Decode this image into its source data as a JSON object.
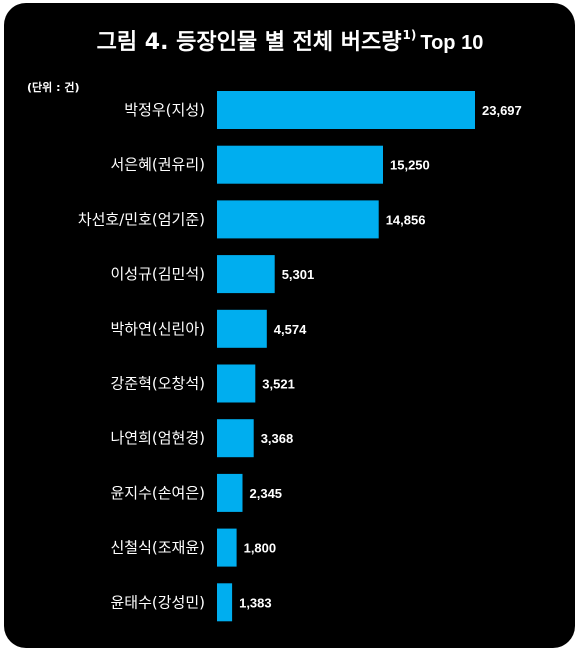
{
  "title": {
    "main": "그림 4. 등장인물 별 전체 버즈량",
    "footnote": "1)",
    "suffix": "Top 10"
  },
  "unit_label": "(단위 : 건)",
  "colors": {
    "background": "#000000",
    "bar": "#00aeef",
    "text": "#ffffff"
  },
  "chart_data": {
    "type": "bar",
    "orientation": "horizontal",
    "title": "그림 4. 등장인물 별 전체 버즈량1) Top 10",
    "categories": [
      "박정우(지성)",
      "서은혜(권유리)",
      "차선호/민호(엄기준)",
      "이성규(김민석)",
      "박하연(신린아)",
      "강준혁(오창석)",
      "나연희(엄현경)",
      "윤지수(손여은)",
      "신철식(조재윤)",
      "윤태수(강성민)"
    ],
    "values": [
      23697,
      15250,
      14856,
      5301,
      4574,
      3521,
      3368,
      2345,
      1800,
      1383
    ],
    "value_labels": [
      "23,697",
      "15,250",
      "14,856",
      "5,301",
      "4,574",
      "3,521",
      "3,368",
      "2,345",
      "1,800",
      "1,383"
    ],
    "xlabel": "",
    "ylabel": "",
    "xlim": [
      0,
      23697
    ],
    "grid": false,
    "legend": "none"
  }
}
